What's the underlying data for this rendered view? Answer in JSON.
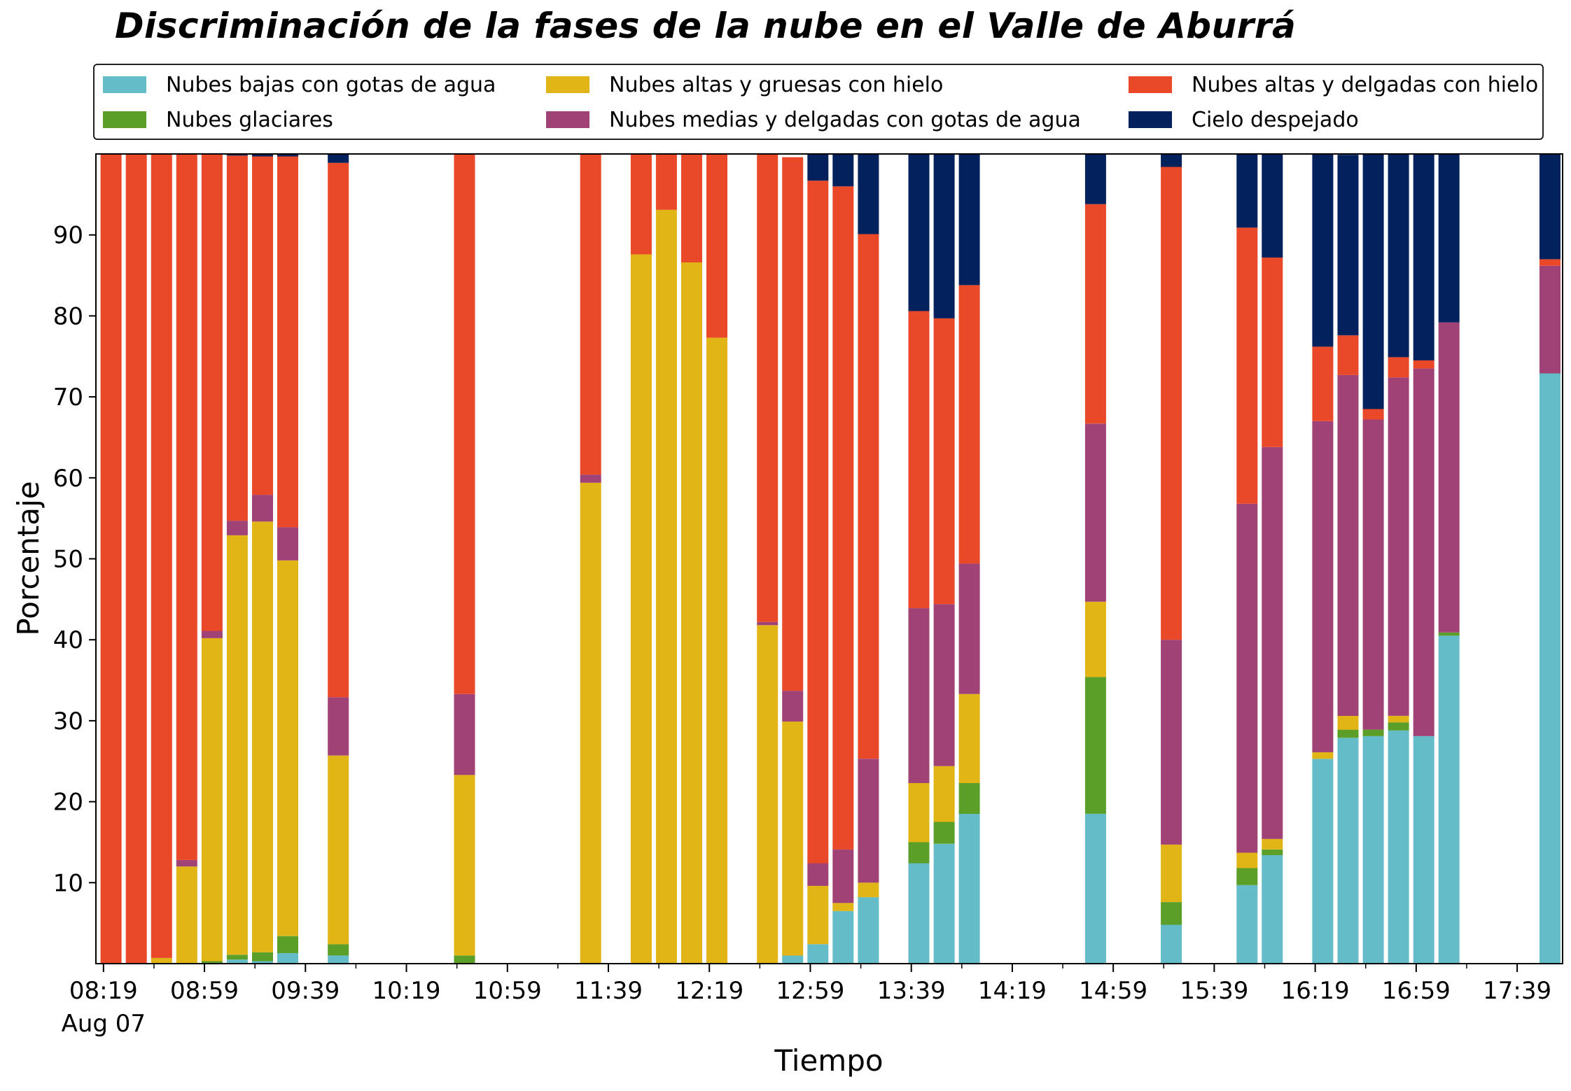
{
  "chart_data": {
    "type": "bar",
    "stacked": true,
    "title": "Discriminación de la fases de la nube en el Valle de Aburrá",
    "xlabel": "Tiempo",
    "ylabel": "Porcentaje",
    "ylim": [
      0,
      100
    ],
    "xlim_minutes": [
      496,
      1077
    ],
    "yticks": [
      10,
      20,
      30,
      40,
      50,
      60,
      70,
      80,
      90
    ],
    "xtick_minutes": [
      499,
      539,
      579,
      619,
      659,
      699,
      739,
      779,
      819,
      859,
      899,
      939,
      979,
      1019,
      1059
    ],
    "xtick_labels": [
      "08:19",
      "08:59",
      "09:39",
      "10:19",
      "10:59",
      "11:39",
      "12:19",
      "12:59",
      "13:39",
      "14:19",
      "14:59",
      "15:39",
      "16:19",
      "16:59",
      "17:39"
    ],
    "xtick_sublabel": "Aug 07",
    "x": [
      "08:22",
      "08:32",
      "08:42",
      "08:52",
      "09:02",
      "09:12",
      "09:22",
      "09:32",
      "09:52",
      "10:42",
      "11:32",
      "11:52",
      "12:02",
      "12:12",
      "12:22",
      "12:42",
      "12:52",
      "13:02",
      "13:12",
      "13:22",
      "13:42",
      "13:52",
      "14:02",
      "14:52",
      "15:22",
      "15:52",
      "16:02",
      "16:22",
      "16:32",
      "16:42",
      "16:52",
      "17:02",
      "17:12",
      "17:52"
    ],
    "series": [
      {
        "name": "Nubes bajas con gotas de agua",
        "color": "#63BCC8",
        "values": [
          0,
          0,
          0,
          0,
          0,
          0.5,
          0.3,
          1.3,
          1,
          0,
          0,
          0,
          0,
          0,
          0,
          0,
          1,
          2.4,
          6.5,
          8.2,
          12.4,
          14.8,
          18.5,
          18.5,
          4.8,
          9.7,
          13.4,
          25.3,
          27.9,
          28.1,
          28.8,
          28.1,
          40.5,
          72.9
        ]
      },
      {
        "name": "Nubes glaciares",
        "color": "#5B9E28",
        "values": [
          0,
          0,
          0,
          0,
          0.3,
          0.6,
          1.1,
          2.1,
          1.4,
          1,
          0,
          0,
          0,
          0,
          0,
          0,
          0,
          0,
          0,
          0,
          2.6,
          2.7,
          3.8,
          16.9,
          2.8,
          2.1,
          0.7,
          0,
          1,
          0.8,
          1,
          0,
          0.4,
          0
        ]
      },
      {
        "name": "Nubes altas y gruesas con hielo",
        "color": "#E1B515",
        "values": [
          0,
          0,
          0.7,
          12,
          39.9,
          51.8,
          53.2,
          46.4,
          23.3,
          22.3,
          59.4,
          87.6,
          93.1,
          86.6,
          77.3,
          41.8,
          28.9,
          7.2,
          1,
          1.8,
          7.3,
          6.9,
          11,
          9.3,
          7.1,
          1.9,
          1.3,
          0.8,
          1.7,
          0,
          0.8,
          0,
          0,
          0
        ]
      },
      {
        "name": "Nubes medias y delgadas con gotas de agua",
        "color": "#A14276",
        "values": [
          0,
          0,
          0,
          0.8,
          0.9,
          1.8,
          3.3,
          4.1,
          7.2,
          10,
          1,
          0,
          0,
          0,
          0,
          0.4,
          3.8,
          2.8,
          6.6,
          15.3,
          21.6,
          20,
          16.1,
          22,
          25.3,
          43.1,
          48.4,
          40.9,
          42.1,
          38.3,
          41.8,
          45.4,
          38.3,
          13.3
        ]
      },
      {
        "name": "Nubes altas y delgadas con hielo",
        "color": "#EA4929",
        "values": [
          100,
          100,
          99.3,
          87.2,
          58.9,
          45.1,
          41.8,
          45.8,
          66,
          66.7,
          39.6,
          12.4,
          6.9,
          13.4,
          22.7,
          57.8,
          65.9,
          84.3,
          81.9,
          64.8,
          36.7,
          35.3,
          34.4,
          27.1,
          58.4,
          34.1,
          23.4,
          9.2,
          4.9,
          1.3,
          2.5,
          1,
          0,
          0.8
        ]
      },
      {
        "name": "Cielo despejado",
        "color": "#03215D",
        "values": [
          0,
          0,
          0,
          0,
          0,
          0.2,
          0.3,
          0.3,
          1.1,
          0,
          0,
          0,
          0,
          0,
          0,
          0,
          0,
          3.3,
          4,
          9.9,
          19.4,
          20.3,
          16.2,
          6.2,
          1.6,
          9.1,
          12.8,
          23.8,
          22.3,
          31.5,
          25.1,
          25.5,
          20.8,
          13
        ]
      }
    ],
    "legend": {
      "location": "top",
      "columns": 3,
      "order": [
        "Nubes bajas con gotas de agua",
        "Nubes glaciares",
        "Nubes altas y gruesas con hielo",
        "Nubes medias y delgadas con gotas de agua",
        "Nubes altas y delgadas con hielo",
        "Cielo despejado"
      ]
    }
  }
}
